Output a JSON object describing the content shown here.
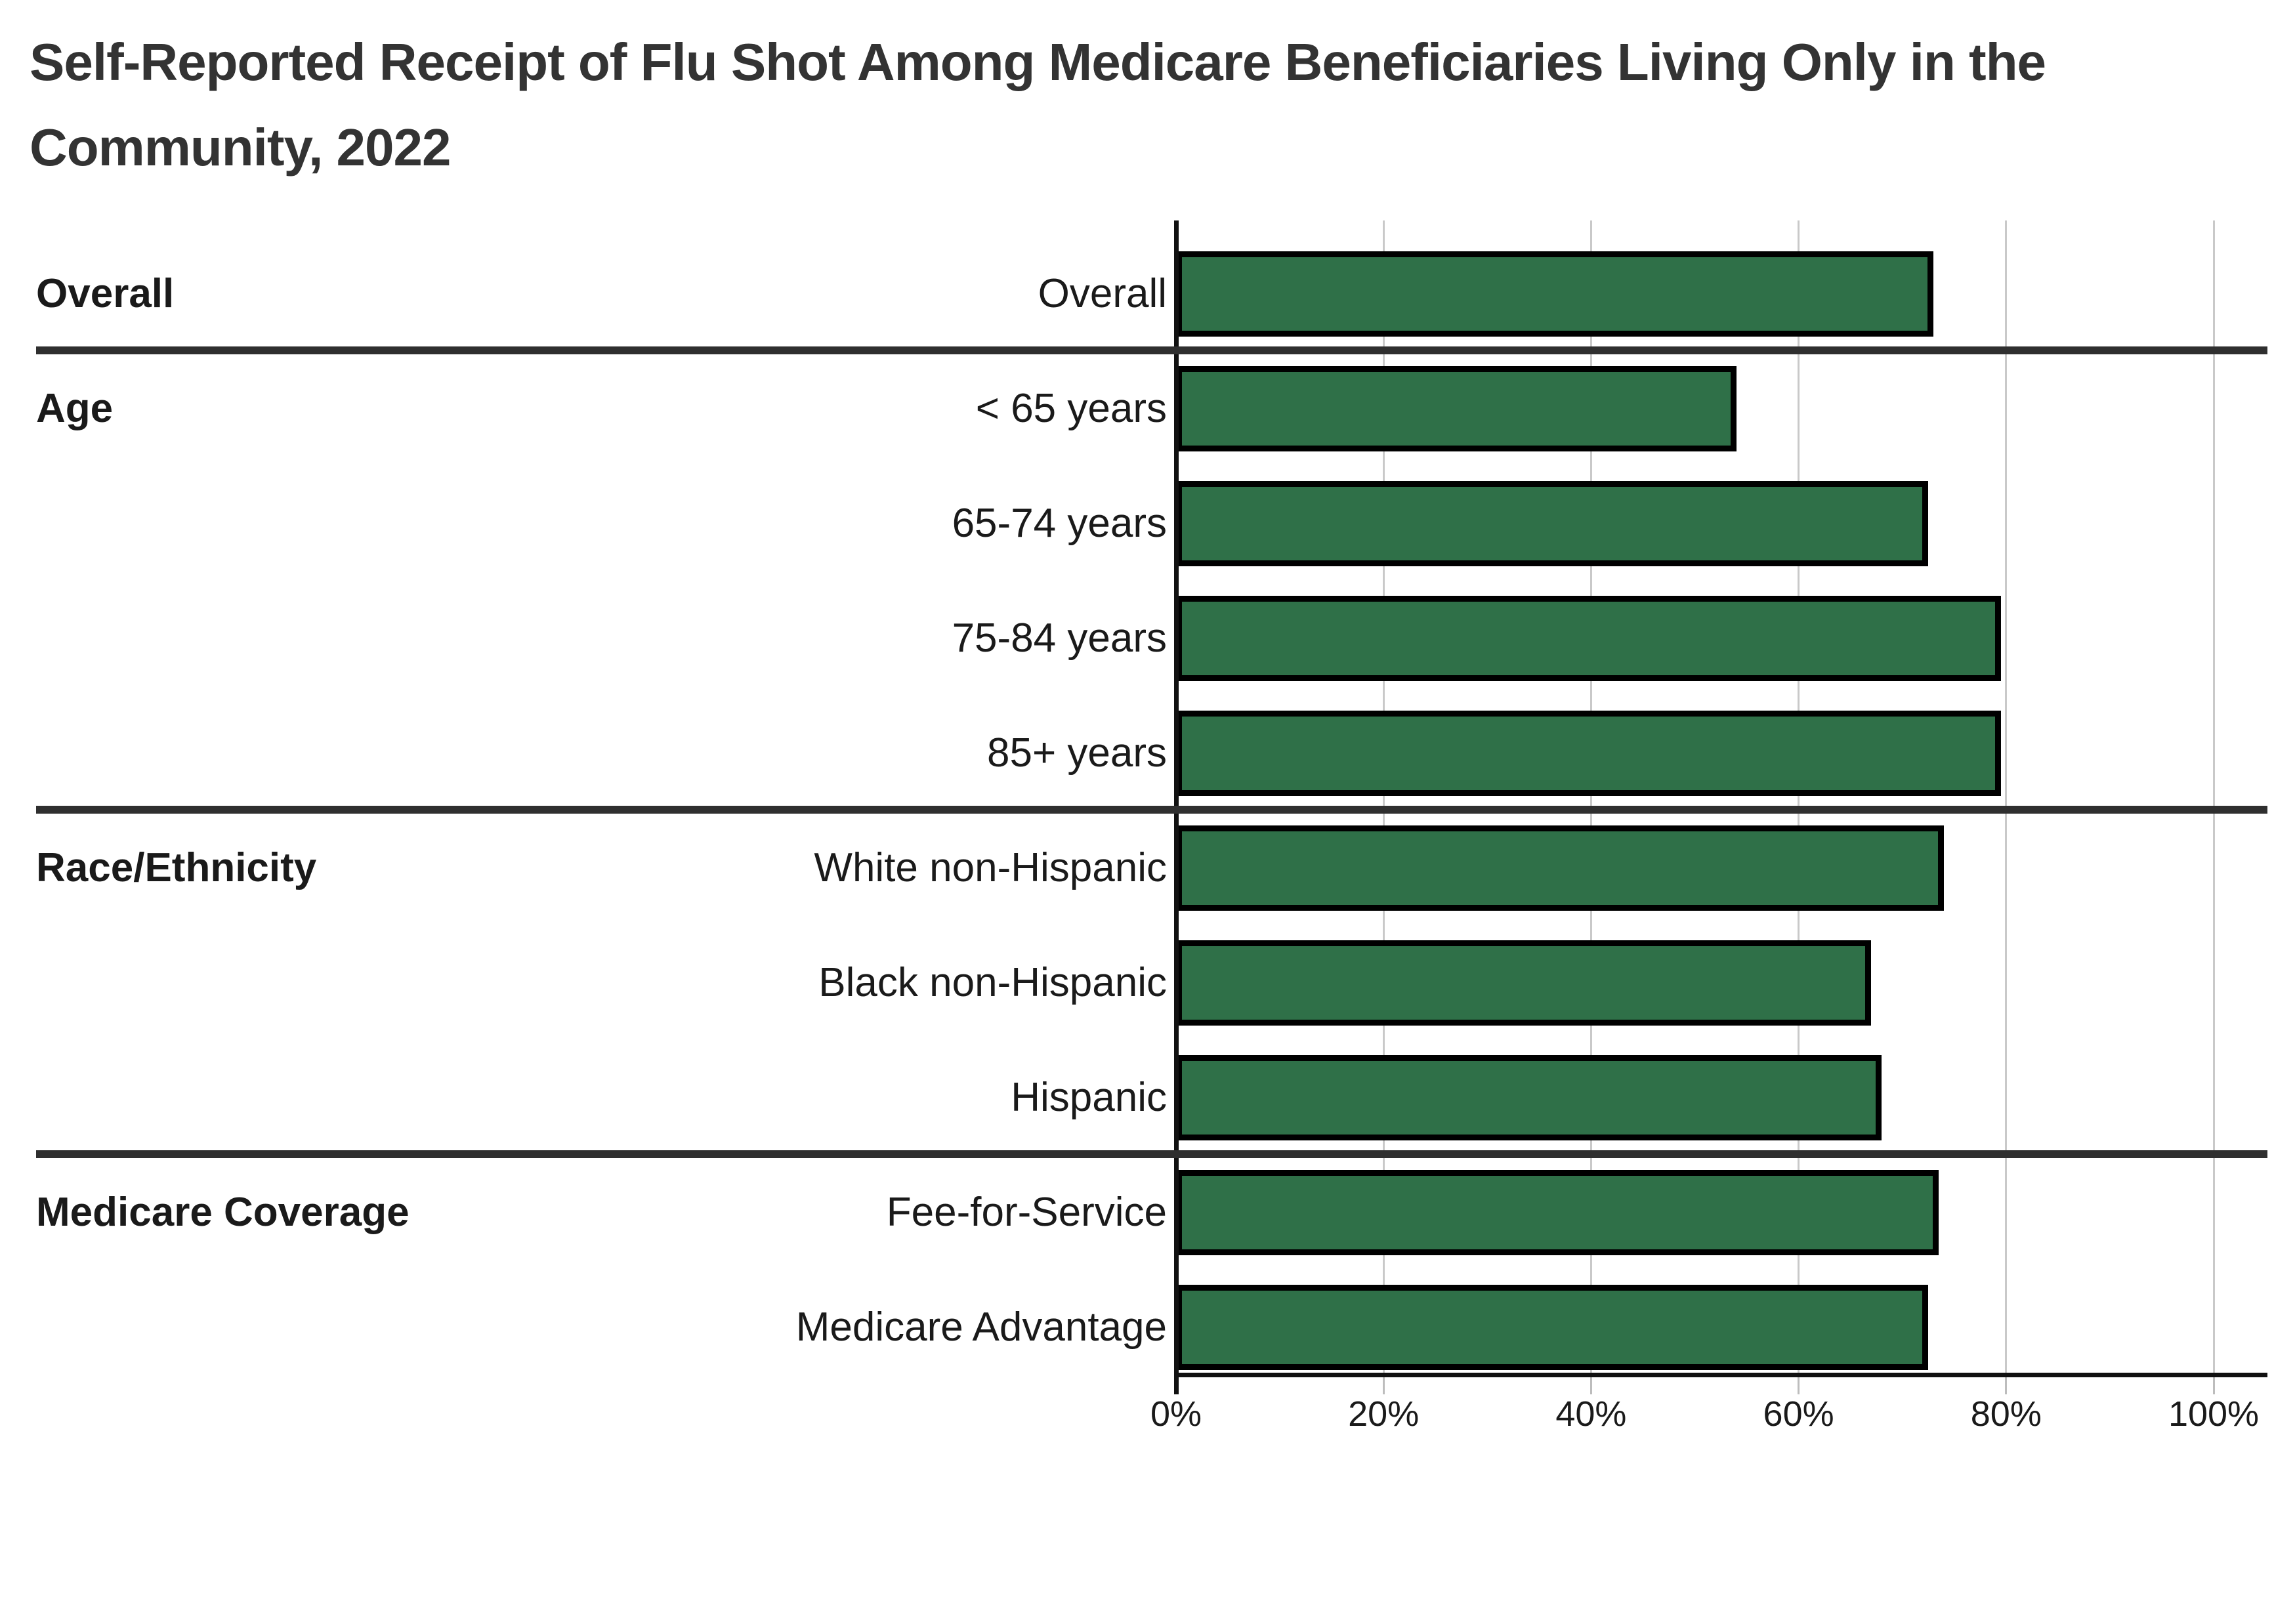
{
  "header": {
    "title_line1": "Self-Reported Receipt of Flu Shot Among Medicare Beneficiaries Living Only in the",
    "title_line2": "Community, 2022"
  },
  "chart_data": {
    "type": "bar",
    "orientation": "horizontal",
    "title": "Self-Reported Receipt of Flu Shot Among Medicare Beneficiaries Living Only in the Community, 2022",
    "xlabel": "",
    "ylabel": "",
    "units": "%",
    "xlim": [
      0,
      100
    ],
    "x_tick_labels": [
      "0%",
      "20%",
      "40%",
      "60%",
      "80%",
      "100%"
    ],
    "x_tick_values": [
      0,
      20,
      40,
      60,
      80,
      100
    ],
    "grid": true,
    "legend": "none",
    "bar_color": "#2f7048",
    "bar_border_color": "#000000",
    "sections": [
      {
        "label": "Overall",
        "rows": [
          {
            "label": "Overall",
            "value": 73
          }
        ]
      },
      {
        "label": "Age",
        "rows": [
          {
            "label": "< 65 years",
            "value": 54
          },
          {
            "label": "65-74 years",
            "value": 72.5
          },
          {
            "label": "75-84 years",
            "value": 79.5
          },
          {
            "label": "85+ years",
            "value": 79.5
          }
        ]
      },
      {
        "label": "Race/Ethnicity",
        "rows": [
          {
            "label": "White non-Hispanic",
            "value": 74
          },
          {
            "label": "Black non-Hispanic",
            "value": 67
          },
          {
            "label": "Hispanic",
            "value": 68
          }
        ]
      },
      {
        "label": "Medicare Coverage",
        "rows": [
          {
            "label": "Fee-for-Service",
            "value": 73.5
          },
          {
            "label": "Medicare Advantage",
            "value": 72.5
          }
        ]
      }
    ]
  },
  "colors": {
    "background": "#ffffff",
    "title_text": "#333333",
    "label_text": "#1a1a1a",
    "gridline": "#c9c9c9",
    "axis": "#111111",
    "section_divider": "#2f2f2f",
    "bar_fill": "#2f7048",
    "bar_border": "#000000"
  }
}
